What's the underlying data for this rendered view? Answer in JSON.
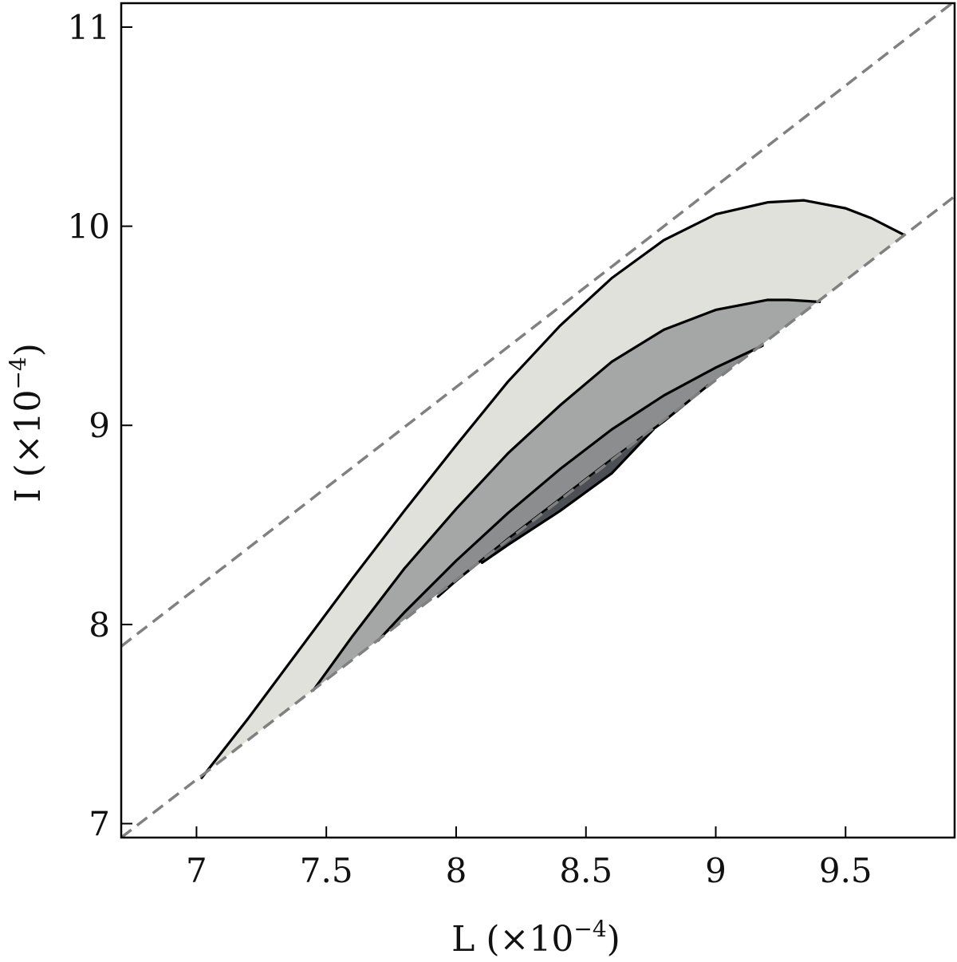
{
  "chart_data": {
    "type": "area",
    "xlabel": "L (×10",
    "xlabel_exp": "−4",
    "xlabel_tail": ")",
    "ylabel": "I (×10",
    "ylabel_exp": "−4",
    "ylabel_tail": ")",
    "xlim": [
      6.71,
      9.92
    ],
    "ylim": [
      6.93,
      11.12
    ],
    "xticks": [
      7,
      7.5,
      8,
      8.5,
      9,
      9.5
    ],
    "xtick_labels": [
      "7",
      "7.5",
      "8",
      "8.5",
      "9",
      "9.5"
    ],
    "yticks": [
      7,
      8,
      9,
      10,
      11
    ],
    "ytick_labels": [
      "7",
      "8",
      "9",
      "10",
      "11"
    ],
    "grid": false,
    "reference_lines": [
      {
        "style": "dashed",
        "color": "#808080",
        "points": [
          [
            6.71,
            7.89
          ],
          [
            9.92,
            11.13
          ]
        ]
      },
      {
        "style": "dashed",
        "color": "#808080",
        "points": [
          [
            6.71,
            6.93
          ],
          [
            9.92,
            10.15
          ]
        ]
      }
    ],
    "contours": [
      {
        "level": 1,
        "fill": "#e1e1dc",
        "curve": [
          [
            7.02,
            7.23
          ],
          [
            7.2,
            7.53
          ],
          [
            7.4,
            7.88
          ],
          [
            7.6,
            8.23
          ],
          [
            7.8,
            8.57
          ],
          [
            8.0,
            8.9
          ],
          [
            8.2,
            9.22
          ],
          [
            8.4,
            9.5
          ],
          [
            8.6,
            9.74
          ],
          [
            8.8,
            9.93
          ],
          [
            9.0,
            10.06
          ],
          [
            9.2,
            10.12
          ],
          [
            9.34,
            10.13
          ],
          [
            9.5,
            10.09
          ],
          [
            9.6,
            10.04
          ],
          [
            9.72,
            9.96
          ]
        ]
      },
      {
        "level": 2,
        "fill": "#a5a7a6",
        "curve": [
          [
            7.45,
            7.67
          ],
          [
            7.6,
            7.94
          ],
          [
            7.8,
            8.28
          ],
          [
            8.0,
            8.58
          ],
          [
            8.2,
            8.86
          ],
          [
            8.4,
            9.1
          ],
          [
            8.6,
            9.32
          ],
          [
            8.8,
            9.48
          ],
          [
            9.0,
            9.58
          ],
          [
            9.2,
            9.63
          ],
          [
            9.28,
            9.63
          ],
          [
            9.4,
            9.62
          ]
        ]
      },
      {
        "level": 3,
        "fill": "#8b8d8e",
        "curve": [
          [
            7.7,
            7.92
          ],
          [
            7.8,
            8.06
          ],
          [
            8.0,
            8.32
          ],
          [
            8.2,
            8.56
          ],
          [
            8.4,
            8.78
          ],
          [
            8.6,
            8.98
          ],
          [
            8.8,
            9.15
          ],
          [
            9.0,
            9.29
          ],
          [
            9.18,
            9.4
          ]
        ]
      },
      {
        "level": 4,
        "fill": "#6d7073",
        "curve": [
          [
            7.93,
            8.14
          ],
          [
            8.0,
            8.22
          ],
          [
            8.2,
            8.43
          ],
          [
            8.4,
            8.63
          ],
          [
            8.6,
            8.83
          ],
          [
            8.8,
            9.02
          ],
          [
            8.97,
            9.2
          ]
        ]
      },
      {
        "level": 5,
        "fill": "#4c5054",
        "curve": [
          [
            8.1,
            8.31
          ],
          [
            8.2,
            8.4
          ],
          [
            8.4,
            8.57
          ],
          [
            8.6,
            8.76
          ],
          [
            8.76,
            8.98
          ]
        ]
      }
    ]
  }
}
